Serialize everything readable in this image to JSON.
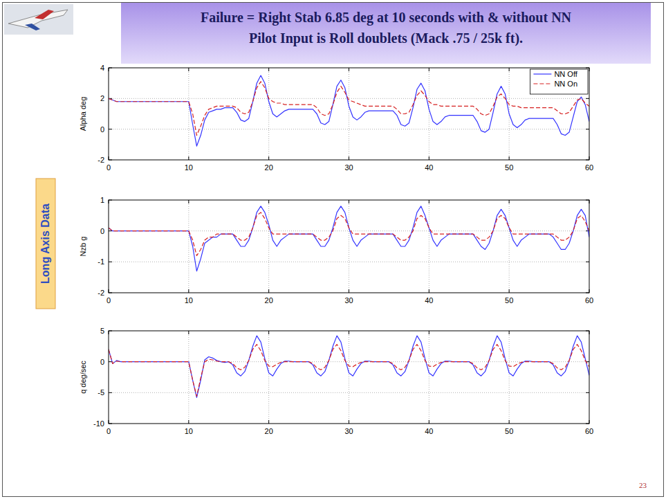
{
  "header": {
    "title_lines": [
      "Failure = Right Stab 6.85 deg at 10 seconds with & without NN",
      "Pilot Input is Roll doublets (Mack .75 / 25k ft)."
    ]
  },
  "side_label": "Long Axis Data",
  "page_number": "23",
  "chart_data": [
    {
      "type": "line",
      "y_label": "Alpha deg",
      "legend": "upper right",
      "grid": true,
      "xlim": [
        0,
        60
      ],
      "xticks": [
        0,
        10,
        20,
        30,
        40,
        50,
        60
      ],
      "ylim": [
        -2,
        4
      ],
      "yticks": [
        -2,
        0,
        2,
        4
      ],
      "x": [
        0,
        0.5,
        1,
        1.5,
        2,
        2.5,
        3,
        3.5,
        4,
        4.5,
        5,
        5.5,
        6,
        6.5,
        7,
        7.5,
        8,
        8.5,
        9,
        9.5,
        10,
        10.5,
        11,
        11.5,
        12,
        12.5,
        13,
        13.5,
        14,
        14.5,
        15,
        15.5,
        16,
        16.5,
        17,
        17.5,
        18,
        18.5,
        19,
        19.5,
        20,
        20.5,
        21,
        21.5,
        22,
        22.5,
        23,
        23.5,
        24,
        24.5,
        25,
        25.5,
        26,
        26.5,
        27,
        27.5,
        28,
        28.5,
        29,
        29.5,
        30,
        30.5,
        31,
        31.5,
        32,
        32.5,
        33,
        33.5,
        34,
        34.5,
        35,
        35.5,
        36,
        36.5,
        37,
        37.5,
        38,
        38.5,
        39,
        39.5,
        40,
        40.5,
        41,
        41.5,
        42,
        42.5,
        43,
        43.5,
        44,
        44.5,
        45,
        45.5,
        46,
        46.5,
        47,
        47.5,
        48,
        48.5,
        49,
        49.5,
        50,
        50.5,
        51,
        51.5,
        52,
        52.5,
        53,
        53.5,
        54,
        54.5,
        55,
        55.5,
        56,
        56.5,
        57,
        57.5,
        58,
        58.5,
        59,
        59.5,
        60
      ],
      "series": [
        {
          "name": "NN Off",
          "color": "#3333ff",
          "line_style": "solid",
          "values": [
            2,
            1.9,
            1.8,
            1.8,
            1.8,
            1.8,
            1.8,
            1.8,
            1.8,
            1.8,
            1.8,
            1.8,
            1.8,
            1.8,
            1.8,
            1.8,
            1.8,
            1.8,
            1.8,
            1.8,
            1.8,
            0.3,
            -1.1,
            -0.4,
            0.6,
            1.1,
            1.2,
            1.3,
            1.3,
            1.4,
            1.4,
            1.4,
            1.1,
            0.6,
            0.5,
            0.7,
            1.8,
            3.0,
            3.5,
            3.0,
            1.8,
            1.0,
            0.8,
            1.0,
            1.2,
            1.3,
            1.3,
            1.3,
            1.3,
            1.3,
            1.3,
            1.3,
            1.0,
            0.4,
            0.3,
            0.5,
            1.6,
            2.8,
            3.2,
            2.7,
            1.5,
            0.8,
            0.6,
            0.8,
            1.1,
            1.2,
            1.2,
            1.2,
            1.2,
            1.2,
            1.2,
            1.2,
            0.9,
            0.3,
            0.2,
            0.4,
            1.4,
            2.6,
            3.0,
            2.5,
            1.3,
            0.5,
            0.3,
            0.5,
            0.8,
            0.9,
            0.9,
            0.9,
            0.9,
            0.9,
            0.9,
            0.9,
            0.5,
            -0.1,
            -0.2,
            0.0,
            1.1,
            2.3,
            2.8,
            2.3,
            1.0,
            0.3,
            0.1,
            0.3,
            0.6,
            0.7,
            0.7,
            0.7,
            0.7,
            0.7,
            0.7,
            0.7,
            0.3,
            -0.3,
            -0.4,
            -0.2,
            0.8,
            1.8,
            2.1,
            1.6,
            0.5
          ]
        },
        {
          "name": "NN On",
          "color": "#d62020",
          "line_style": "dashed",
          "values": [
            2,
            1.9,
            1.8,
            1.8,
            1.8,
            1.8,
            1.8,
            1.8,
            1.8,
            1.8,
            1.8,
            1.8,
            1.8,
            1.8,
            1.8,
            1.8,
            1.8,
            1.8,
            1.8,
            1.8,
            1.8,
            1.0,
            -0.4,
            0.2,
            0.9,
            1.3,
            1.4,
            1.5,
            1.5,
            1.5,
            1.5,
            1.5,
            1.4,
            1.1,
            1.0,
            1.1,
            1.8,
            2.7,
            3.1,
            2.7,
            2.0,
            1.8,
            1.7,
            1.7,
            1.6,
            1.6,
            1.6,
            1.6,
            1.6,
            1.6,
            1.6,
            1.6,
            1.4,
            1.0,
            0.9,
            1.0,
            1.6,
            2.4,
            2.8,
            2.4,
            1.9,
            1.8,
            1.7,
            1.6,
            1.5,
            1.5,
            1.5,
            1.5,
            1.5,
            1.5,
            1.5,
            1.5,
            1.3,
            1.0,
            1.0,
            1.1,
            1.6,
            2.2,
            2.5,
            2.2,
            1.8,
            1.6,
            1.6,
            1.5,
            1.5,
            1.5,
            1.5,
            1.5,
            1.5,
            1.5,
            1.5,
            1.5,
            1.3,
            1.0,
            0.9,
            1.0,
            1.5,
            2.1,
            2.3,
            2.0,
            1.6,
            1.5,
            1.5,
            1.4,
            1.4,
            1.4,
            1.4,
            1.4,
            1.4,
            1.4,
            1.4,
            1.4,
            1.2,
            1.0,
            1.0,
            1.1,
            1.5,
            1.9,
            2.0,
            1.7,
            1.5
          ]
        }
      ]
    },
    {
      "type": "line",
      "y_label": "Nzb g",
      "grid": true,
      "xlim": [
        0,
        60
      ],
      "xticks": [
        0,
        10,
        20,
        30,
        40,
        50,
        60
      ],
      "ylim": [
        -2,
        1
      ],
      "yticks": [
        -2,
        -1,
        0,
        1
      ],
      "x": [
        0,
        0.5,
        1,
        1.5,
        2,
        2.5,
        3,
        3.5,
        4,
        4.5,
        5,
        5.5,
        6,
        6.5,
        7,
        7.5,
        8,
        8.5,
        9,
        9.5,
        10,
        10.5,
        11,
        11.5,
        12,
        12.5,
        13,
        13.5,
        14,
        14.5,
        15,
        15.5,
        16,
        16.5,
        17,
        17.5,
        18,
        18.5,
        19,
        19.5,
        20,
        20.5,
        21,
        21.5,
        22,
        22.5,
        23,
        23.5,
        24,
        24.5,
        25,
        25.5,
        26,
        26.5,
        27,
        27.5,
        28,
        28.5,
        29,
        29.5,
        30,
        30.5,
        31,
        31.5,
        32,
        32.5,
        33,
        33.5,
        34,
        34.5,
        35,
        35.5,
        36,
        36.5,
        37,
        37.5,
        38,
        38.5,
        39,
        39.5,
        40,
        40.5,
        41,
        41.5,
        42,
        42.5,
        43,
        43.5,
        44,
        44.5,
        45,
        45.5,
        46,
        46.5,
        47,
        47.5,
        48,
        48.5,
        49,
        49.5,
        50,
        50.5,
        51,
        51.5,
        52,
        52.5,
        53,
        53.5,
        54,
        54.5,
        55,
        55.5,
        56,
        56.5,
        57,
        57.5,
        58,
        58.5,
        59,
        59.5,
        60
      ],
      "series": [
        {
          "color": "#3333ff",
          "line_style": "solid",
          "values": [
            0.1,
            0,
            0,
            0,
            0,
            0,
            0,
            0,
            0,
            0,
            0,
            0,
            0,
            0,
            0,
            0,
            0,
            0,
            0,
            0,
            0,
            -0.5,
            -1.3,
            -0.9,
            -0.4,
            -0.3,
            -0.2,
            -0.2,
            -0.1,
            -0.1,
            -0.1,
            -0.1,
            -0.3,
            -0.5,
            -0.5,
            -0.3,
            0.1,
            0.6,
            0.8,
            0.6,
            0.2,
            -0.3,
            -0.5,
            -0.3,
            -0.2,
            -0.1,
            -0.1,
            -0.1,
            -0.1,
            -0.1,
            -0.1,
            -0.1,
            -0.3,
            -0.5,
            -0.5,
            -0.3,
            0.1,
            0.6,
            0.8,
            0.6,
            0.1,
            -0.3,
            -0.5,
            -0.3,
            -0.2,
            -0.1,
            -0.1,
            -0.1,
            -0.1,
            -0.1,
            -0.1,
            -0.1,
            -0.3,
            -0.5,
            -0.5,
            -0.3,
            0.1,
            0.6,
            0.8,
            0.5,
            0.1,
            -0.3,
            -0.5,
            -0.3,
            -0.2,
            -0.1,
            -0.1,
            -0.1,
            -0.1,
            -0.1,
            -0.1,
            -0.1,
            -0.3,
            -0.5,
            -0.6,
            -0.4,
            0.0,
            0.5,
            0.7,
            0.5,
            0.1,
            -0.3,
            -0.5,
            -0.3,
            -0.2,
            -0.1,
            -0.1,
            -0.1,
            -0.1,
            -0.1,
            -0.1,
            -0.2,
            -0.4,
            -0.6,
            -0.6,
            -0.4,
            0.0,
            0.5,
            0.7,
            0.5,
            -0.2
          ]
        },
        {
          "color": "#d62020",
          "line_style": "dashed",
          "values": [
            0.1,
            0,
            0,
            0,
            0,
            0,
            0,
            0,
            0,
            0,
            0,
            0,
            0,
            0,
            0,
            0,
            0,
            0,
            0,
            0,
            0,
            -0.3,
            -0.8,
            -0.6,
            -0.3,
            -0.2,
            -0.2,
            -0.1,
            -0.1,
            -0.1,
            -0.1,
            -0.1,
            -0.2,
            -0.3,
            -0.3,
            -0.2,
            0.1,
            0.5,
            0.6,
            0.4,
            0.1,
            -0.1,
            -0.1,
            -0.1,
            -0.1,
            -0.1,
            -0.1,
            -0.1,
            -0.1,
            -0.1,
            -0.1,
            -0.1,
            -0.2,
            -0.3,
            -0.3,
            -0.2,
            0.0,
            0.4,
            0.5,
            0.4,
            0.1,
            -0.1,
            -0.1,
            -0.1,
            -0.1,
            -0.1,
            -0.1,
            -0.1,
            -0.1,
            -0.1,
            -0.1,
            -0.1,
            -0.2,
            -0.3,
            -0.3,
            -0.2,
            0.0,
            0.4,
            0.5,
            0.4,
            0.1,
            -0.1,
            -0.1,
            -0.1,
            -0.1,
            -0.1,
            -0.1,
            -0.1,
            -0.1,
            -0.1,
            -0.1,
            -0.1,
            -0.2,
            -0.3,
            -0.3,
            -0.2,
            0.0,
            0.4,
            0.5,
            0.4,
            0.1,
            -0.1,
            -0.1,
            -0.1,
            -0.1,
            -0.1,
            -0.1,
            -0.1,
            -0.1,
            -0.1,
            -0.1,
            -0.1,
            -0.2,
            -0.3,
            -0.3,
            -0.2,
            0.0,
            0.4,
            0.5,
            0.3,
            0.0
          ]
        }
      ]
    },
    {
      "type": "line",
      "y_label": "q deg/sec",
      "grid": true,
      "xlim": [
        0,
        60
      ],
      "xticks": [
        0,
        10,
        20,
        30,
        40,
        50,
        60
      ],
      "ylim": [
        -10,
        5
      ],
      "yticks": [
        -10,
        -5,
        0,
        5
      ],
      "x": [
        0,
        0.5,
        1,
        1.5,
        2,
        2.5,
        3,
        3.5,
        4,
        4.5,
        5,
        5.5,
        6,
        6.5,
        7,
        7.5,
        8,
        8.5,
        9,
        9.5,
        10,
        10.5,
        11,
        11.5,
        12,
        12.5,
        13,
        13.5,
        14,
        14.5,
        15,
        15.5,
        16,
        16.5,
        17,
        17.5,
        18,
        18.5,
        19,
        19.5,
        20,
        20.5,
        21,
        21.5,
        22,
        22.5,
        23,
        23.5,
        24,
        24.5,
        25,
        25.5,
        26,
        26.5,
        27,
        27.5,
        28,
        28.5,
        29,
        29.5,
        30,
        30.5,
        31,
        31.5,
        32,
        32.5,
        33,
        33.5,
        34,
        34.5,
        35,
        35.5,
        36,
        36.5,
        37,
        37.5,
        38,
        38.5,
        39,
        39.5,
        40,
        40.5,
        41,
        41.5,
        42,
        42.5,
        43,
        43.5,
        44,
        44.5,
        45,
        45.5,
        46,
        46.5,
        47,
        47.5,
        48,
        48.5,
        49,
        49.5,
        50,
        50.5,
        51,
        51.5,
        52,
        52.5,
        53,
        53.5,
        54,
        54.5,
        55,
        55.5,
        56,
        56.5,
        57,
        57.5,
        58,
        58.5,
        59,
        59.5,
        60
      ],
      "series": [
        {
          "color": "#3333ff",
          "line_style": "solid",
          "values": [
            2,
            -0.3,
            0.2,
            0,
            0,
            0,
            0,
            0,
            0,
            0,
            0,
            0,
            0,
            0,
            0,
            0,
            0,
            0,
            0,
            0,
            0,
            -3.0,
            -5.8,
            -3.0,
            0.3,
            0.8,
            0.6,
            0.2,
            0.0,
            -0.1,
            0,
            -0.5,
            -1.8,
            -2.3,
            -1.6,
            0.2,
            2.5,
            4.2,
            3.2,
            0.5,
            -1.8,
            -2.3,
            -1.2,
            -0.3,
            0.1,
            0.1,
            0,
            0,
            0,
            0,
            0,
            -0.5,
            -1.8,
            -2.3,
            -1.6,
            0.2,
            2.5,
            4.2,
            3.2,
            0.5,
            -1.8,
            -2.3,
            -1.2,
            -0.3,
            0.1,
            0.1,
            0,
            0,
            0,
            0,
            0,
            -0.5,
            -1.8,
            -2.3,
            -1.6,
            0.2,
            2.5,
            4.2,
            3.2,
            0.5,
            -1.8,
            -2.3,
            -1.2,
            -0.3,
            0.1,
            0.1,
            0,
            0,
            0,
            0,
            0,
            -0.5,
            -1.8,
            -2.3,
            -1.6,
            0.2,
            2.5,
            4.2,
            3.2,
            0.5,
            -1.8,
            -2.3,
            -1.2,
            -0.3,
            0.1,
            0.1,
            0,
            0,
            0,
            0,
            0,
            -0.5,
            -1.8,
            -2.3,
            -1.6,
            0.2,
            2.5,
            4.2,
            3.2,
            0.5,
            -2.2
          ]
        },
        {
          "color": "#d62020",
          "line_style": "dashed",
          "values": [
            2,
            -0.3,
            0.1,
            0,
            0,
            0,
            0,
            0,
            0,
            0,
            0,
            0,
            0,
            0,
            0,
            0,
            0,
            0,
            0,
            0,
            0,
            -3.0,
            -5.6,
            -2.6,
            0.0,
            0.4,
            0.3,
            0.1,
            0,
            0,
            0,
            -0.3,
            -1.0,
            -1.3,
            -0.9,
            0.2,
            2.0,
            2.8,
            1.8,
            0.2,
            -0.7,
            -0.8,
            -0.4,
            -0.1,
            0,
            0,
            0,
            0,
            0,
            0,
            0,
            -0.3,
            -1.0,
            -1.3,
            -0.9,
            0.2,
            2.0,
            2.8,
            1.8,
            0.2,
            -0.7,
            -0.8,
            -0.4,
            -0.1,
            0,
            0,
            0,
            0,
            0,
            0,
            0,
            -0.3,
            -1.0,
            -1.3,
            -0.9,
            0.2,
            2.0,
            2.8,
            1.8,
            0.2,
            -0.7,
            -0.8,
            -0.4,
            -0.1,
            0,
            0,
            0,
            0,
            0,
            0,
            0,
            -0.3,
            -1.0,
            -1.3,
            -0.9,
            0.2,
            2.0,
            2.8,
            1.8,
            0.2,
            -0.7,
            -0.8,
            -0.4,
            -0.1,
            0,
            0,
            0,
            0,
            0,
            0,
            0,
            -0.3,
            -1.0,
            -1.3,
            -0.9,
            0.2,
            2.0,
            2.8,
            1.8,
            0.2,
            -0.8
          ]
        }
      ]
    }
  ]
}
